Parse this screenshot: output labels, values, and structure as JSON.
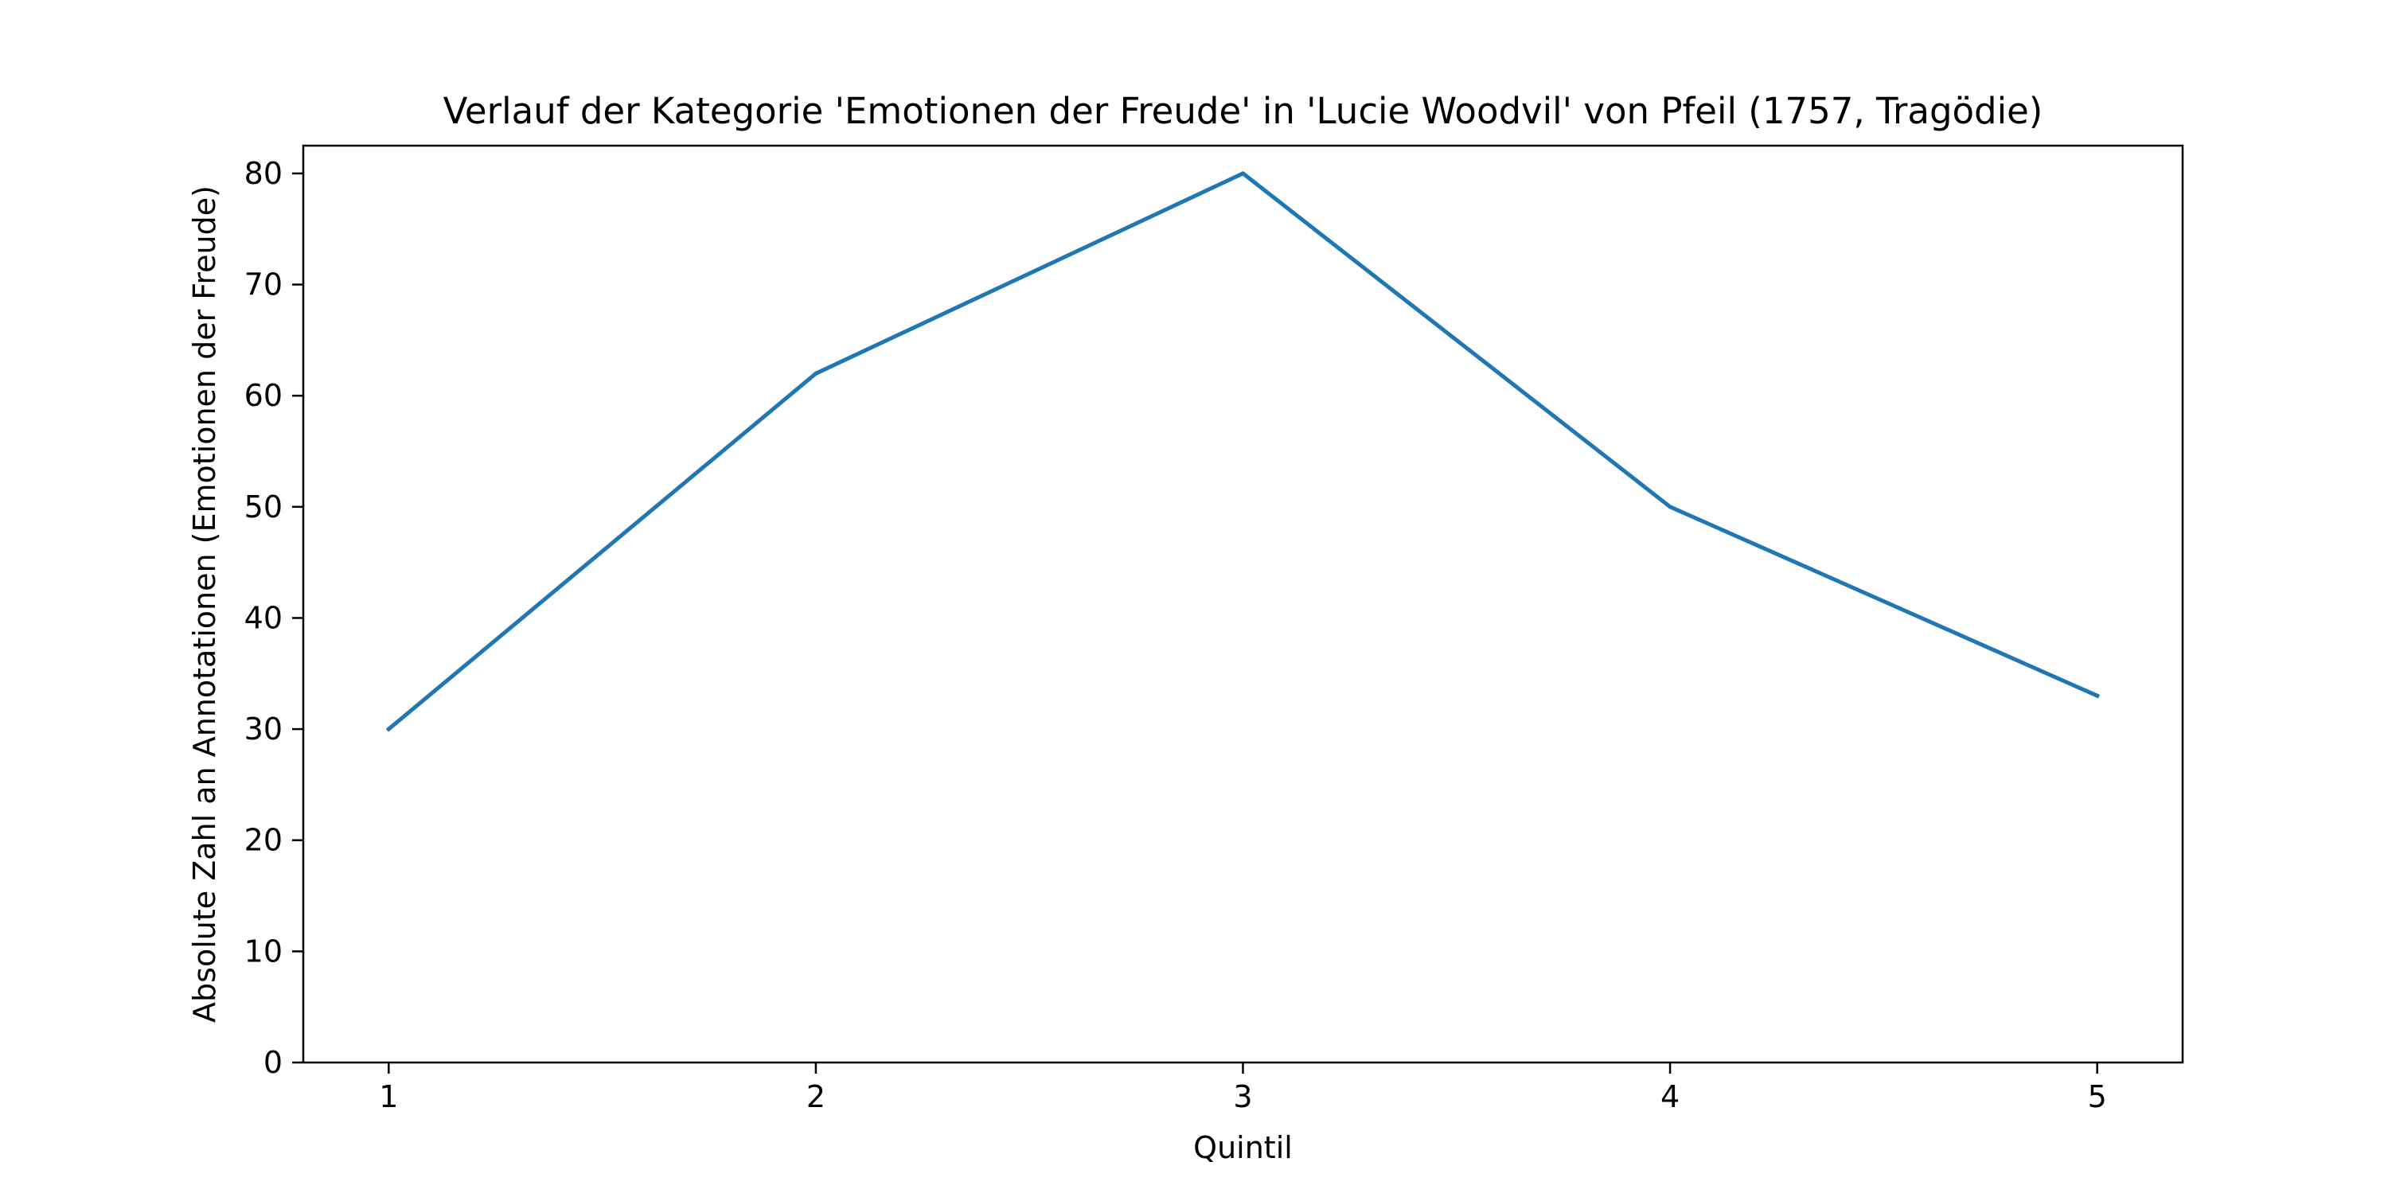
{
  "chart_data": {
    "type": "line",
    "title": "Verlauf der Kategorie 'Emotionen der Freude' in 'Lucie Woodvil' von Pfeil (1757, Tragödie)",
    "xlabel": "Quintil",
    "ylabel": "Absolute Zahl an Annotationen (Emotionen der Freude)",
    "x": [
      1,
      2,
      3,
      4,
      5
    ],
    "series": [
      {
        "values": [
          30,
          62,
          80,
          50,
          33
        ],
        "color": "#1f77b4"
      }
    ],
    "xlim": [
      0.8,
      5.2
    ],
    "ylim": [
      0,
      82.5
    ],
    "xticks": [
      {
        "value": 1,
        "label": "1"
      },
      {
        "value": 2,
        "label": "2"
      },
      {
        "value": 3,
        "label": "3"
      },
      {
        "value": 4,
        "label": "4"
      },
      {
        "value": 5,
        "label": "5"
      }
    ],
    "yticks": [
      {
        "value": 0,
        "label": "0"
      },
      {
        "value": 10,
        "label": "10"
      },
      {
        "value": 20,
        "label": "20"
      },
      {
        "value": 30,
        "label": "30"
      },
      {
        "value": 40,
        "label": "40"
      },
      {
        "value": 50,
        "label": "50"
      },
      {
        "value": 60,
        "label": "60"
      },
      {
        "value": 70,
        "label": "70"
      },
      {
        "value": 80,
        "label": "80"
      }
    ],
    "grid": false,
    "legend": "none"
  }
}
